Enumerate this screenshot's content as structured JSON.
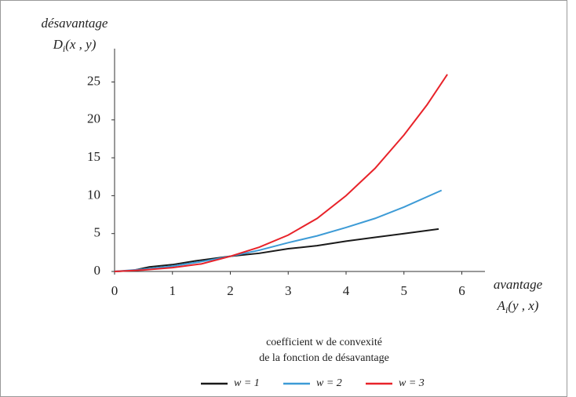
{
  "chart_data": {
    "type": "line",
    "y_label": "désavantage",
    "y_symbol": {
      "base": "D",
      "sub": "i",
      "args": "(x , y)"
    },
    "x_label": "avantage",
    "x_symbol": {
      "base": "A",
      "sub": "i",
      "args": "(y , x)"
    },
    "legend_title": [
      "coefficient w de convexité",
      "de la fonction de désavantage"
    ],
    "xlim": [
      0,
      6.4
    ],
    "xticks": [
      0,
      1,
      2,
      3,
      4,
      5,
      6
    ],
    "ylim": [
      0,
      29.4
    ],
    "yticks": [
      0,
      5,
      10,
      15,
      20,
      25
    ],
    "legend": "bottom",
    "series": [
      {
        "name": "w = 1",
        "color": "#1a1a1a",
        "x": [
          0,
          0.3,
          0.6,
          1,
          1.4,
          2,
          2.5,
          3,
          3.5,
          4,
          4.5,
          5,
          5.6
        ],
        "values": [
          0,
          0.1,
          0.6,
          0.9,
          1.4,
          2,
          2.4,
          3,
          3.4,
          4,
          4.5,
          5,
          5.6
        ]
      },
      {
        "name": "w = 2",
        "color": "#3d9bd6",
        "x": [
          0,
          0.5,
          1,
          1.5,
          2,
          2.5,
          3,
          3.5,
          4,
          4.5,
          5,
          5.65
        ],
        "values": [
          0,
          0.3,
          0.7,
          1.3,
          2,
          2.8,
          3.8,
          4.7,
          5.8,
          7,
          8.5,
          10.7
        ]
      },
      {
        "name": "w = 3",
        "color": "#e8232a",
        "x": [
          0,
          0.5,
          1,
          1.5,
          2,
          2.5,
          3,
          3.5,
          4,
          4.5,
          5,
          5.4,
          5.75
        ],
        "values": [
          0,
          0.2,
          0.5,
          1,
          2,
          3.2,
          4.8,
          7,
          10,
          13.6,
          18,
          22,
          26
        ]
      }
    ]
  }
}
